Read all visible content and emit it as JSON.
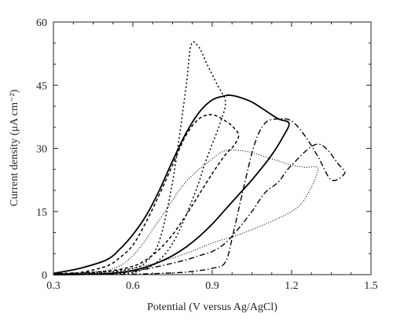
{
  "chart_data": {
    "type": "line",
    "title": "",
    "xlabel": "Potential (V versus Ag/AgCl)",
    "ylabel": "Current density (μA cm⁻²)",
    "xlim": [
      0.3,
      1.5
    ],
    "ylim": [
      0,
      60
    ],
    "xticks": [
      "0.3",
      "0.6",
      "0.9",
      "1.2",
      "1.5"
    ],
    "yticks": [
      "0",
      "15",
      "30",
      "45",
      "60"
    ],
    "grid": false,
    "legend": "none",
    "series": [
      {
        "style": "solid",
        "x": [
          0.3,
          0.4,
          0.5,
          0.55,
          0.6,
          0.65,
          0.7,
          0.75,
          0.8,
          0.85,
          0.9,
          0.95,
          0.97,
          1.0,
          1.05,
          1.1,
          1.15,
          1.19,
          1.17,
          1.12,
          1.05,
          1.0,
          0.95,
          0.9,
          0.85,
          0.8,
          0.75,
          0.7,
          0.65,
          0.6,
          0.55,
          0.5,
          0.45,
          0.4,
          0.35,
          0.3
        ],
        "y": [
          0.3,
          1.5,
          3.5,
          6,
          9.5,
          14,
          20,
          27,
          33.5,
          38.5,
          41.5,
          42.5,
          42.6,
          42.2,
          41,
          39,
          37,
          36,
          33,
          28,
          22.5,
          19,
          15.5,
          12,
          9,
          6.5,
          4.5,
          3,
          1.8,
          1,
          0.5,
          0.2,
          0.1,
          0.05,
          0.02,
          0
        ]
      },
      {
        "style": "dotted",
        "x": [
          0.3,
          0.5,
          0.6,
          0.65,
          0.7,
          0.75,
          0.8,
          0.82,
          0.85,
          0.88,
          0.92,
          0.95,
          0.93,
          0.9,
          0.87,
          0.85,
          0.82,
          0.79,
          0.76,
          0.73,
          0.7,
          0.68,
          0.65,
          0.62,
          0.6,
          0.55,
          0.5,
          0.4,
          0.3
        ],
        "y": [
          0.2,
          0.6,
          1.5,
          3,
          8,
          22,
          44,
          54.5,
          54,
          50,
          45,
          41,
          36,
          31,
          26,
          22,
          17,
          12.5,
          8.5,
          5.5,
          3.5,
          2.4,
          1.5,
          0.8,
          0.5,
          0.2,
          0.1,
          0.05,
          0
        ]
      },
      {
        "style": "dashed",
        "x": [
          0.3,
          0.5,
          0.6,
          0.65,
          0.7,
          0.75,
          0.8,
          0.85,
          0.9,
          0.95,
          0.98,
          1.0,
          0.98,
          0.95,
          0.9,
          0.85,
          0.8,
          0.75,
          0.7,
          0.65,
          0.6,
          0.55,
          0.5,
          0.4,
          0.3
        ],
        "y": [
          0.2,
          0.8,
          2,
          3.5,
          6,
          9.5,
          14,
          19,
          24,
          28.5,
          30.5,
          33,
          35,
          36.5,
          38,
          37,
          33,
          26,
          19,
          12.5,
          7,
          4,
          2,
          0.5,
          0
        ]
      },
      {
        "style": "dotted-thin",
        "x": [
          0.3,
          0.5,
          0.6,
          0.7,
          0.8,
          0.9,
          0.95,
          1.0,
          1.05,
          1.1,
          1.15,
          1.2,
          1.25,
          1.3,
          1.25,
          1.2,
          1.1,
          1.0,
          0.9,
          0.8,
          0.7,
          0.6,
          0.5,
          0.4,
          0.3
        ],
        "y": [
          0.2,
          1,
          4.5,
          13,
          22,
          27.5,
          29.5,
          29.5,
          29,
          28,
          27,
          26,
          25.5,
          25,
          18,
          15,
          12,
          9.5,
          7.5,
          5,
          3,
          1.5,
          0.6,
          0.2,
          0
        ]
      },
      {
        "style": "dash-dot",
        "x": [
          0.3,
          0.5,
          0.6,
          0.7,
          0.8,
          0.85,
          0.9,
          0.95,
          1.0,
          1.05,
          1.1,
          1.15,
          1.2,
          1.3,
          1.38,
          1.4,
          1.35,
          1.3,
          1.25,
          1.2,
          1.15,
          1.1,
          1.06,
          1.02,
          0.98,
          0.95,
          0.9,
          0.8,
          0.7,
          0.6,
          0.5,
          0.4,
          0.3
        ],
        "y": [
          0.1,
          0.3,
          0.8,
          2,
          3.5,
          4.5,
          5.5,
          7.5,
          11,
          15,
          19.5,
          22,
          26,
          31,
          26,
          24,
          22.5,
          28,
          33,
          36.5,
          37,
          36,
          31,
          21,
          10,
          3,
          1.5,
          0.6,
          0.3,
          0.1,
          0.05,
          0.02,
          0
        ]
      }
    ]
  }
}
